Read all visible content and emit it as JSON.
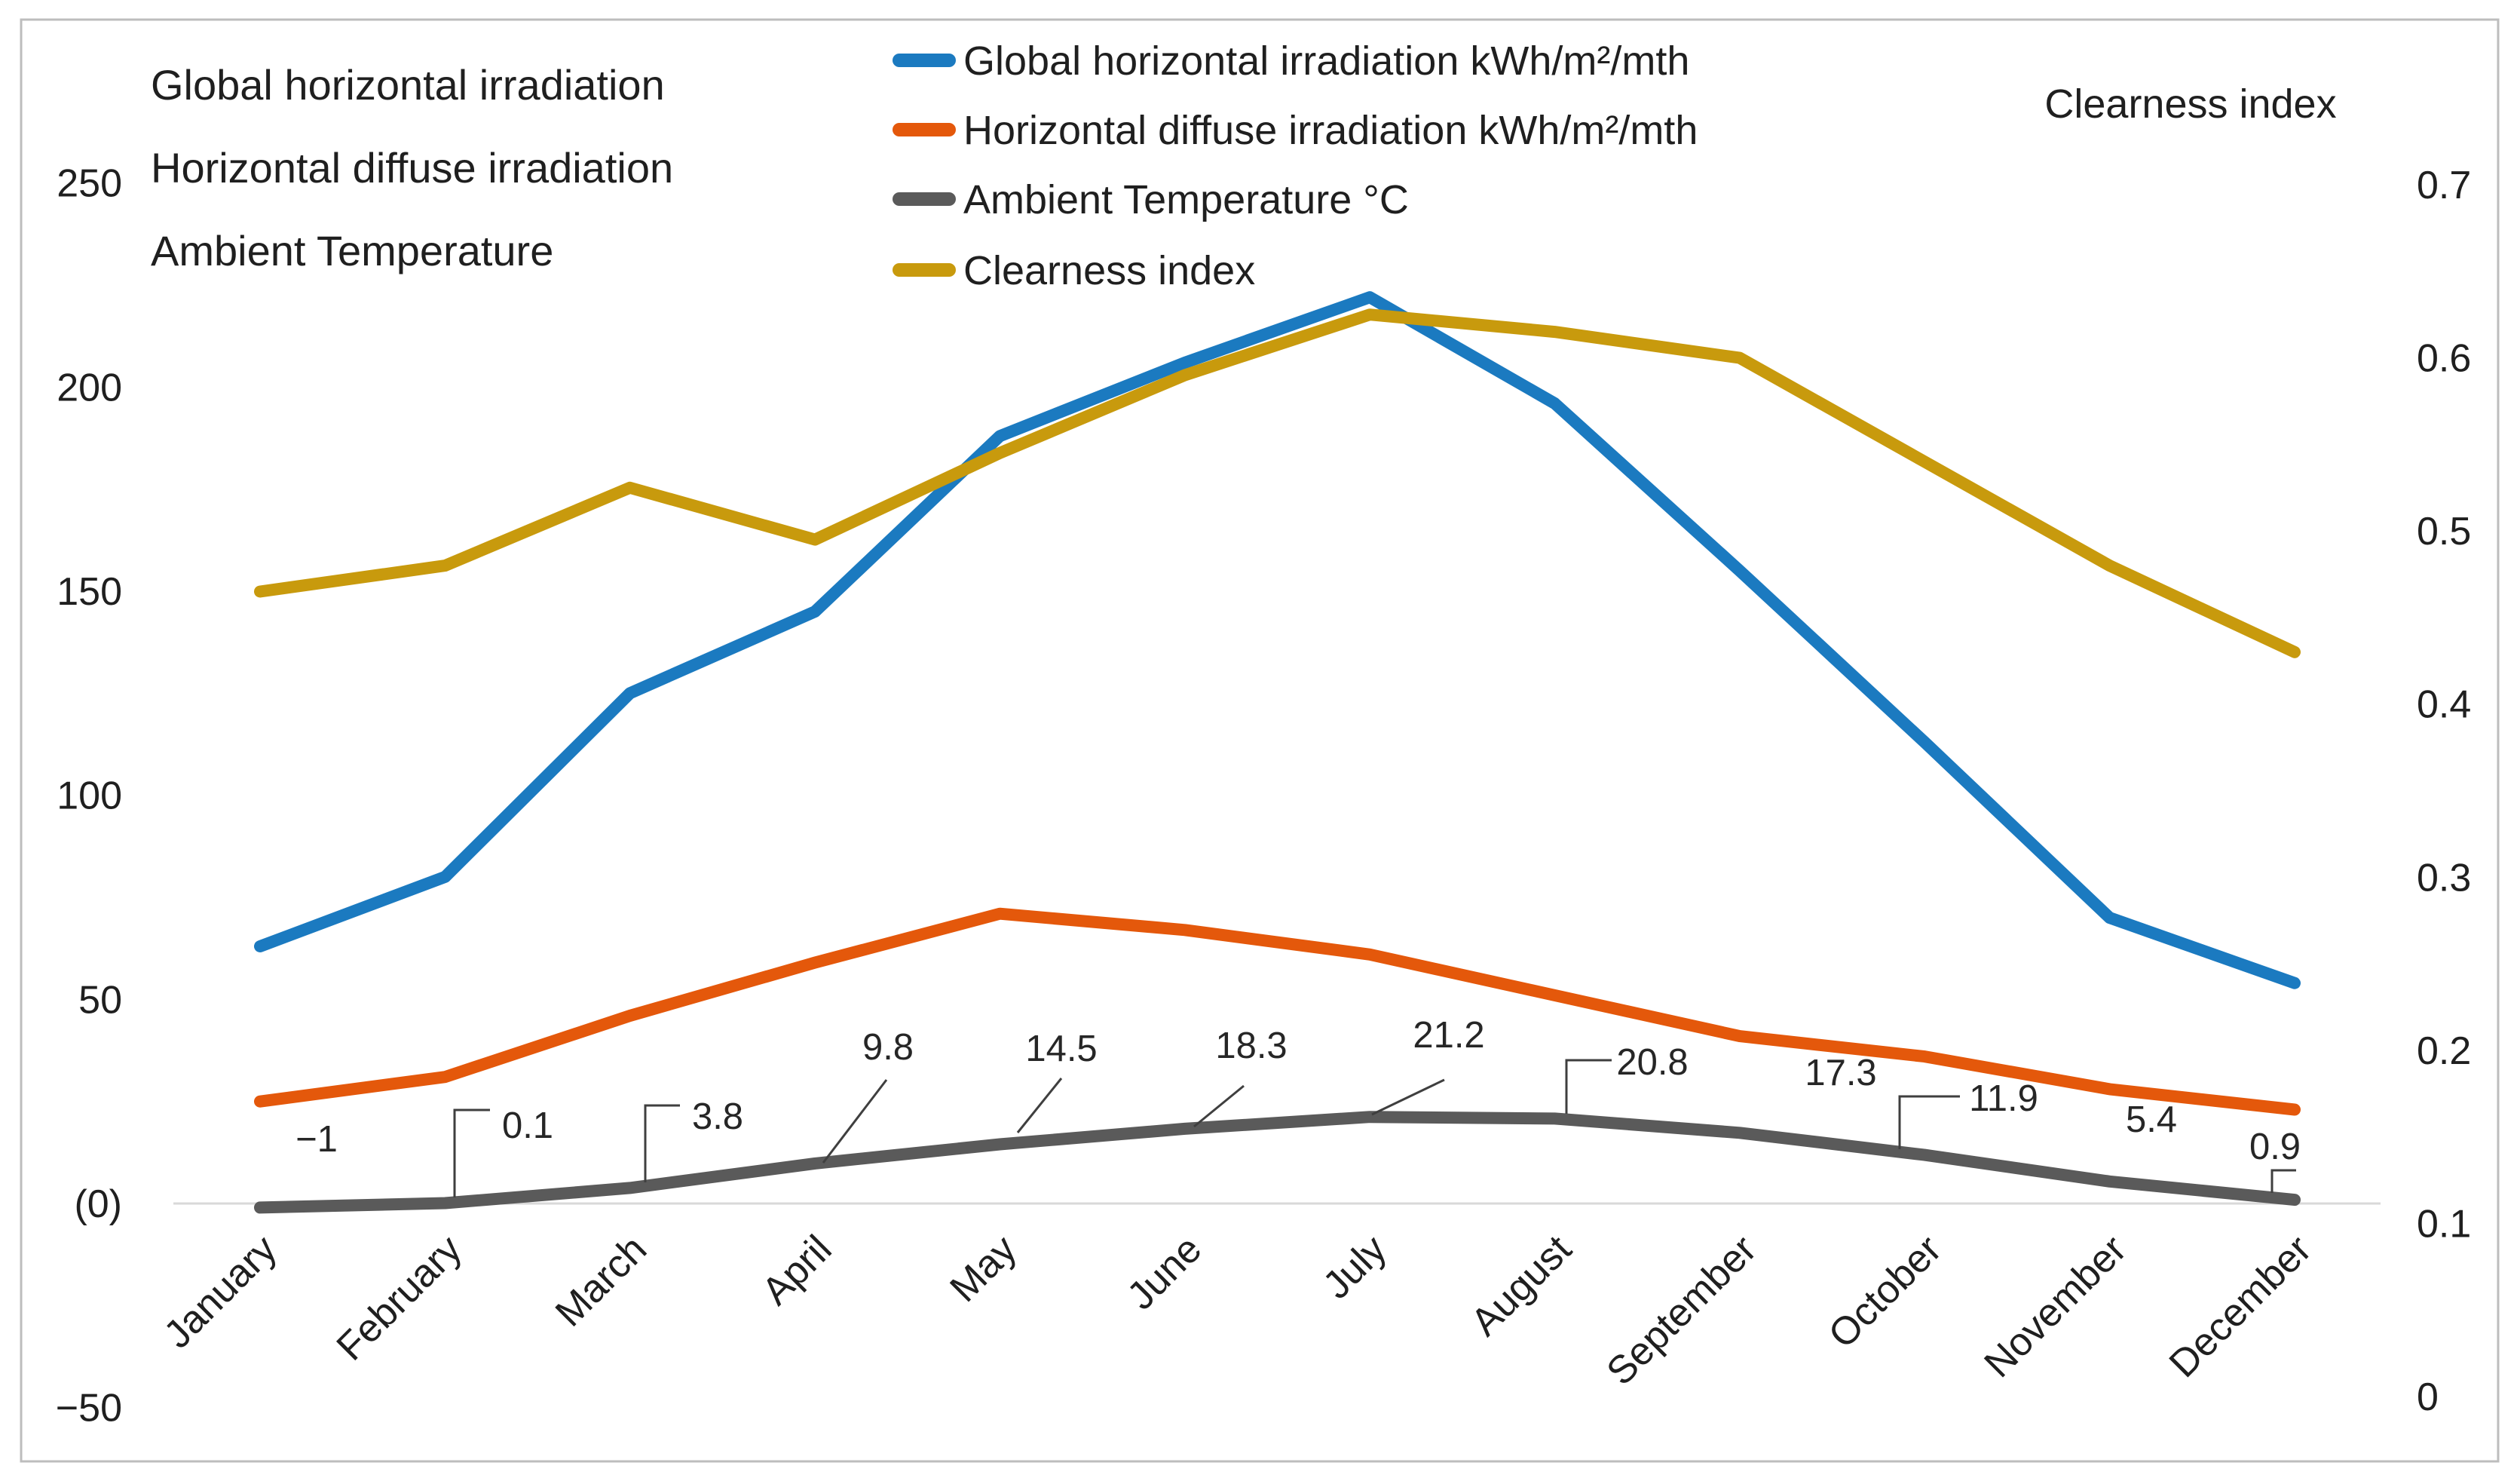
{
  "chart_data": {
    "type": "line",
    "left_axis_title_lines": [
      "Global horizontal irradiation",
      "Horizontal diffuse irradiation",
      "Ambient Temperature"
    ],
    "right_axis_title": "Clearness index",
    "categories": [
      "January",
      "February",
      "March",
      "April",
      "May",
      "June",
      "July",
      "August",
      "September",
      "October",
      "November",
      "December"
    ],
    "series": [
      {
        "id": "ghi",
        "name": "Global horizontal irradiation kWh/m²/mth",
        "color": "#1B7AC0",
        "axis": "left",
        "values": [
          63,
          80,
          125,
          145,
          188,
          206,
          222,
          196,
          155,
          113,
          70,
          54
        ]
      },
      {
        "id": "hdi",
        "name": "Horizontal diffuse irradiation kWh/m²/mth",
        "color": "#E4580B",
        "axis": "left",
        "values": [
          25,
          31,
          46,
          59,
          71,
          67,
          61,
          51,
          41,
          36,
          28,
          23
        ]
      },
      {
        "id": "temp",
        "name": "Ambient Temperature °C",
        "color": "#5A5A5A",
        "axis": "left",
        "values": [
          -1,
          0.1,
          3.8,
          9.8,
          14.5,
          18.3,
          21.2,
          20.8,
          17.3,
          11.9,
          5.4,
          0.9
        ],
        "point_labels": [
          "−1",
          "0.1",
          "3.8",
          "9.8",
          "14.5",
          "18.3",
          "21.2",
          "20.8",
          "17.3",
          "11.9",
          "5.4",
          "0.9"
        ]
      },
      {
        "id": "clearness",
        "name": "Clearness index",
        "color": "#C89A0D",
        "axis": "right",
        "values": [
          0.465,
          0.48,
          0.525,
          0.495,
          0.545,
          0.59,
          0.625,
          0.615,
          0.6,
          0.54,
          0.48,
          0.43
        ]
      }
    ],
    "left_axis": {
      "range": [
        -50,
        250
      ],
      "ticks": [
        {
          "label": "250",
          "value": 250
        },
        {
          "label": "200",
          "value": 200
        },
        {
          "label": "150",
          "value": 150
        },
        {
          "label": "100",
          "value": 100
        },
        {
          "label": "50",
          "value": 50
        },
        {
          "label": "(0)",
          "value": 0
        },
        {
          "label": "−50",
          "value": -50
        }
      ]
    },
    "right_axis": {
      "range": [
        0,
        0.7
      ],
      "ticks": [
        {
          "label": "0.7",
          "value": 0.7
        },
        {
          "label": "0.6",
          "value": 0.6
        },
        {
          "label": "0.5",
          "value": 0.5
        },
        {
          "label": "0.4",
          "value": 0.4
        },
        {
          "label": "0.3",
          "value": 0.3
        },
        {
          "label": "0.2",
          "value": 0.2
        },
        {
          "label": "0.1",
          "value": 0.1
        },
        {
          "label": "0",
          "value": 0
        }
      ]
    },
    "legend_position": "top-center",
    "grid": false,
    "colors": {
      "axis_line": "#D9D9D9",
      "frame": "#BDBDBD",
      "text": "#1F1F1F",
      "data_label_text": "#262626",
      "leader_line": "#3F3F3F"
    }
  }
}
